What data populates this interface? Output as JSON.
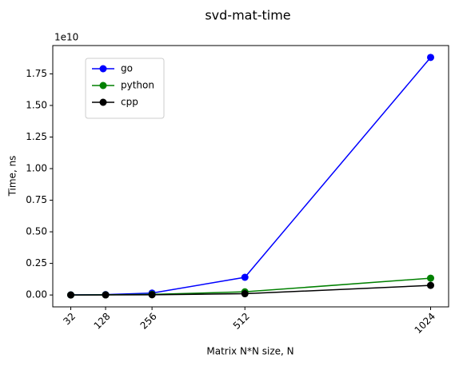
{
  "chart_data": {
    "type": "line",
    "title": "svd-mat-time",
    "xlabel": "Matrix N*N size, N",
    "ylabel": "Time, ns",
    "y_offset_text": "1e10",
    "x": [
      32,
      128,
      256,
      512,
      1024
    ],
    "series": [
      {
        "name": "go",
        "color": "#0000ff",
        "values": [
          5000000,
          30000000,
          150000000,
          1400000000,
          18800000000
        ]
      },
      {
        "name": "python",
        "color": "#008000",
        "values": [
          3000000,
          15000000,
          50000000,
          250000000,
          1330000000
        ]
      },
      {
        "name": "cpp",
        "color": "#000000",
        "values": [
          1000000,
          5000000,
          20000000,
          100000000,
          760000000
        ]
      }
    ],
    "xlim": [
      -17.6,
      1073.6
    ],
    "xticks": [
      32,
      128,
      256,
      512,
      1024
    ],
    "ylim": [
      -940000000,
      19740000000
    ],
    "yticks": [
      {
        "value": 0,
        "label": "0.00"
      },
      {
        "value": 2500000000,
        "label": "0.25"
      },
      {
        "value": 5000000000,
        "label": "0.50"
      },
      {
        "value": 7500000000,
        "label": "0.75"
      },
      {
        "value": 10000000000,
        "label": "1.00"
      },
      {
        "value": 12500000000,
        "label": "1.25"
      },
      {
        "value": 15000000000,
        "label": "1.50"
      },
      {
        "value": 17500000000,
        "label": "1.75"
      }
    ],
    "grid": false,
    "legend": "upper left"
  }
}
